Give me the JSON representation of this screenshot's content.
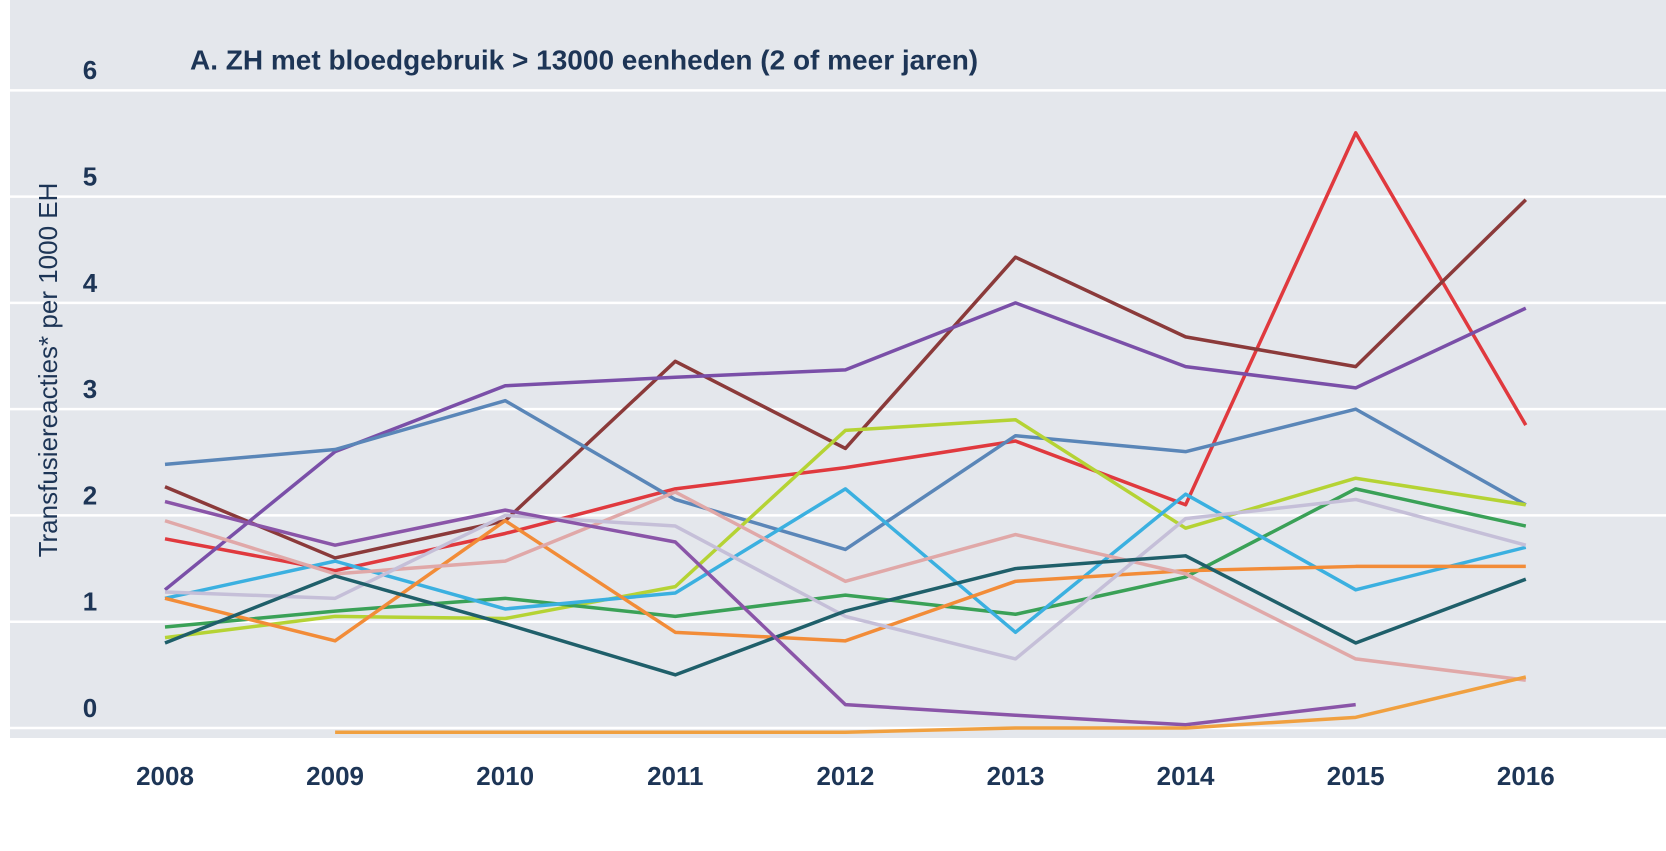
{
  "chart_data": {
    "type": "line",
    "title": "A. ZH met bloedgebruik > 13000 eenheden (2 of meer jaren)",
    "y_label": "Transfusiereacties* per 1000 EH",
    "categories": [
      "2008",
      "2009",
      "2010",
      "2011",
      "2012",
      "2013",
      "2014",
      "2015",
      "2016"
    ],
    "ylim": [
      -0.1,
      6.85
    ],
    "yticks": [
      0,
      1,
      2,
      3,
      4,
      5,
      6
    ],
    "grid": true,
    "series": [
      {
        "color": "#e0393e",
        "values": [
          1.78,
          1.48,
          1.83,
          2.25,
          2.45,
          2.7,
          2.1,
          5.6,
          2.85
        ]
      },
      {
        "color": "#8b3a3a",
        "values": [
          2.27,
          1.6,
          1.95,
          3.45,
          2.63,
          4.43,
          3.68,
          3.4,
          4.97
        ]
      },
      {
        "color": "#7a4fa8",
        "values": [
          1.3,
          2.6,
          3.22,
          3.3,
          3.37,
          4.0,
          3.4,
          3.2,
          3.95
        ]
      },
      {
        "color": "#5a86b8",
        "values": [
          2.48,
          2.62,
          3.08,
          2.15,
          1.68,
          2.75,
          2.6,
          3.0,
          2.1
        ]
      },
      {
        "color": "#b5d334",
        "values": [
          0.85,
          1.05,
          1.03,
          1.33,
          2.8,
          2.9,
          1.88,
          2.35,
          2.1
        ]
      },
      {
        "color": "#3aa157",
        "values": [
          0.95,
          1.1,
          1.22,
          1.05,
          1.25,
          1.07,
          1.42,
          2.25,
          1.9
        ]
      },
      {
        "color": "#3bb0e0",
        "values": [
          1.22,
          1.57,
          1.12,
          1.27,
          2.25,
          0.9,
          2.2,
          1.3,
          1.7
        ]
      },
      {
        "color": "#f28c38",
        "values": [
          1.22,
          0.82,
          1.95,
          0.9,
          0.82,
          1.38,
          1.48,
          1.52,
          1.52
        ]
      },
      {
        "color": "#e0a8a8",
        "values": [
          1.95,
          1.45,
          1.57,
          2.22,
          1.38,
          1.82,
          1.45,
          0.65,
          0.45
        ]
      },
      {
        "color": "#c5bfd8",
        "values": [
          1.28,
          1.22,
          2.0,
          1.9,
          1.05,
          0.65,
          1.97,
          2.15,
          1.72
        ]
      },
      {
        "color": "#1f5f6a",
        "values": [
          0.8,
          1.43,
          0.98,
          0.5,
          1.1,
          1.5,
          1.62,
          0.8,
          1.4
        ]
      },
      {
        "color": "#8a55a8",
        "values": [
          2.13,
          1.72,
          2.05,
          1.75,
          0.22,
          0.12,
          0.03,
          0.22,
          null
        ]
      },
      {
        "color": "#f0a040",
        "values": [
          null,
          -0.04,
          -0.04,
          -0.04,
          -0.04,
          0.0,
          0.0,
          0.1,
          0.48
        ]
      }
    ]
  }
}
